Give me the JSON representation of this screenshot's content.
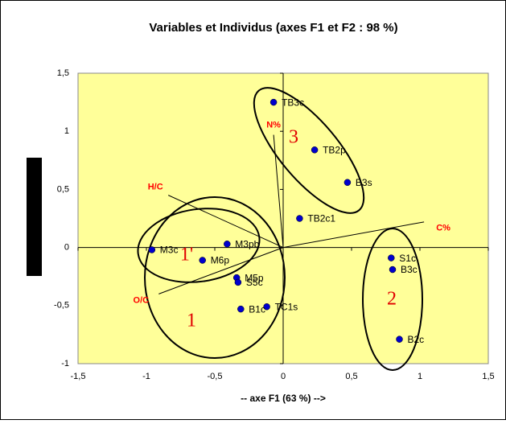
{
  "chart_data": {
    "type": "scatter",
    "title": "Variables et Individus (axes F1 et F2 : 98 %)",
    "x_label": "-- axe F1 (63 %) -->",
    "xlim": [
      -1.5,
      1.5
    ],
    "ylim": [
      -1,
      1.5
    ],
    "xticks": [
      {
        "value": -1.5,
        "label": "-1,5"
      },
      -1,
      {
        "value": -0.5,
        "label": "-0,5"
      },
      0,
      {
        "value": 0.5,
        "label": "0,5"
      },
      1,
      {
        "value": 1.5,
        "label": "1,5"
      }
    ],
    "yticks": [
      -1,
      {
        "value": -0.5,
        "label": "-0,5"
      },
      0,
      {
        "value": 0.5,
        "label": "0,5"
      },
      1,
      {
        "value": 1.5,
        "label": "1,5"
      }
    ],
    "points": {
      "color": "#0000cc",
      "labels": [
        "TB3c",
        "TB2p",
        "B3s",
        "TB2c1",
        "M3pb",
        "M3c",
        "M6p",
        "M5p",
        "S5c",
        "TC1s",
        "B1c",
        "S1c",
        "B3c",
        "B2c"
      ],
      "x": [
        -0.07,
        0.23,
        0.47,
        0.12,
        -0.41,
        -0.96,
        -0.59,
        -0.34,
        -0.33,
        -0.12,
        -0.31,
        0.79,
        0.8,
        0.85
      ],
      "y": [
        1.25,
        0.84,
        0.56,
        0.25,
        0.03,
        -0.02,
        -0.11,
        -0.26,
        -0.3,
        -0.51,
        -0.53,
        -0.09,
        -0.19,
        -0.79
      ]
    },
    "variables": {
      "color": "#ff0000",
      "labels": [
        "N%",
        "H/C",
        "C%",
        "O/C"
      ],
      "x": [
        -0.07,
        -0.84,
        1.03,
        -0.91
      ],
      "y": [
        0.97,
        0.45,
        0.22,
        -0.4
      ]
    },
    "annotations": [
      "3",
      "2",
      "1",
      "1'"
    ]
  }
}
